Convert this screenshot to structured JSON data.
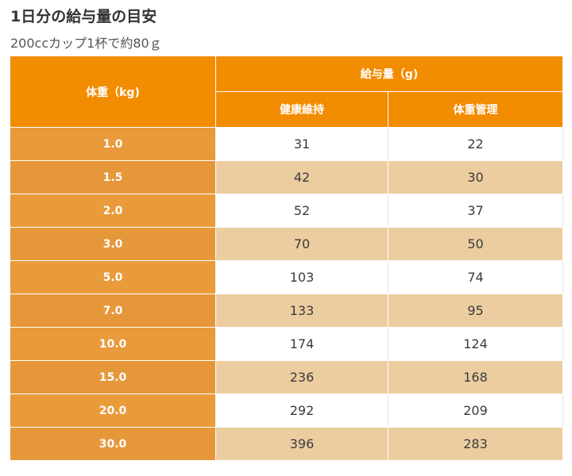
{
  "page": {
    "title": "1日分の給与量の目安",
    "subtitle": "200ccカップ1杯で約80ｇ"
  },
  "table": {
    "header_weight": "体重（kg)",
    "header_amount": "給与量（g)",
    "header_maintenance": "健康維持",
    "header_weight_control": "体重管理",
    "rows": [
      {
        "weight": "1.0",
        "maintenance": "31",
        "weight_control": "22"
      },
      {
        "weight": "1.5",
        "maintenance": "42",
        "weight_control": "30"
      },
      {
        "weight": "2.0",
        "maintenance": "52",
        "weight_control": "37"
      },
      {
        "weight": "3.0",
        "maintenance": "70",
        "weight_control": "50"
      },
      {
        "weight": "5.0",
        "maintenance": "103",
        "weight_control": "74"
      },
      {
        "weight": "7.0",
        "maintenance": "133",
        "weight_control": "95"
      },
      {
        "weight": "10.0",
        "maintenance": "174",
        "weight_control": "124"
      },
      {
        "weight": "15.0",
        "maintenance": "236",
        "weight_control": "168"
      },
      {
        "weight": "20.0",
        "maintenance": "292",
        "weight_control": "209"
      },
      {
        "weight": "30.0",
        "maintenance": "396",
        "weight_control": "283"
      }
    ]
  },
  "colors": {
    "header_orange": "#f28c00",
    "weight_column": "#e89a3c",
    "stripe_beige": "#eccda0",
    "stripe_white": "#ffffff"
  }
}
